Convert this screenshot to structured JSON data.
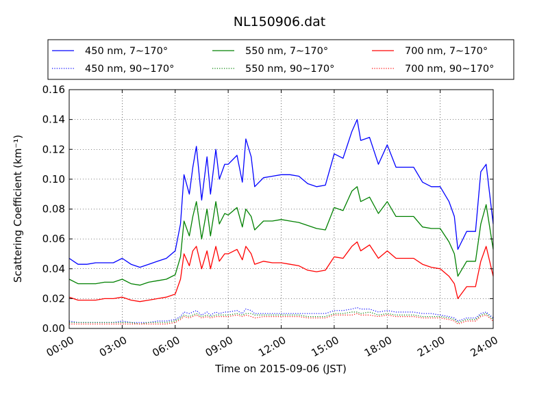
{
  "chart_data": {
    "type": "line",
    "title": "NL150906.dat",
    "xlabel": "Time on 2015-09-06 (JST)",
    "ylabel": "Scattering Coefficient (km⁻¹)",
    "xlim": [
      0,
      24
    ],
    "ylim": [
      0,
      0.16
    ],
    "x_ticks": [
      0,
      3,
      6,
      9,
      12,
      15,
      18,
      21,
      24
    ],
    "x_tick_labels": [
      "00:00",
      "03:00",
      "06:00",
      "09:00",
      "12:00",
      "15:00",
      "18:00",
      "21:00",
      "24:00"
    ],
    "y_ticks": [
      0,
      0.02,
      0.04,
      0.06,
      0.08,
      0.1,
      0.12,
      0.14,
      0.16
    ],
    "y_tick_labels": [
      "0.00",
      "0.02",
      "0.04",
      "0.06",
      "0.08",
      "0.10",
      "0.12",
      "0.14",
      "0.16"
    ],
    "grid": true,
    "legend_position": "top",
    "x_hours": [
      0,
      0.5,
      1,
      1.5,
      2,
      2.5,
      3,
      3.5,
      4,
      4.5,
      5,
      5.5,
      6,
      6.3,
      6.5,
      6.8,
      7,
      7.2,
      7.5,
      7.8,
      8,
      8.3,
      8.5,
      8.8,
      9,
      9.5,
      9.8,
      10,
      10.3,
      10.5,
      11,
      11.5,
      12,
      12.5,
      13,
      13.5,
      14,
      14.5,
      15,
      15.5,
      16,
      16.3,
      16.5,
      17,
      17.5,
      18,
      18.5,
      19,
      19.5,
      20,
      20.5,
      21,
      21.5,
      21.8,
      22,
      22.5,
      23,
      23.3,
      23.6,
      24
    ],
    "series": [
      {
        "name": "450 nm, 7∼170°",
        "color": "#0000ff",
        "style": "solid",
        "values": [
          0.047,
          0.043,
          0.043,
          0.044,
          0.044,
          0.044,
          0.047,
          0.043,
          0.041,
          0.043,
          0.045,
          0.047,
          0.052,
          0.07,
          0.103,
          0.09,
          0.108,
          0.122,
          0.086,
          0.115,
          0.09,
          0.12,
          0.1,
          0.11,
          0.11,
          0.116,
          0.098,
          0.127,
          0.115,
          0.095,
          0.101,
          0.102,
          0.103,
          0.103,
          0.102,
          0.097,
          0.095,
          0.096,
          0.117,
          0.114,
          0.132,
          0.14,
          0.126,
          0.128,
          0.11,
          0.123,
          0.108,
          0.108,
          0.108,
          0.098,
          0.095,
          0.095,
          0.085,
          0.075,
          0.053,
          0.065,
          0.065,
          0.105,
          0.11,
          0.07
        ]
      },
      {
        "name": "550 nm, 7∼170°",
        "color": "#008000",
        "style": "solid",
        "values": [
          0.033,
          0.03,
          0.03,
          0.03,
          0.031,
          0.031,
          0.033,
          0.03,
          0.029,
          0.031,
          0.032,
          0.033,
          0.036,
          0.048,
          0.072,
          0.062,
          0.075,
          0.085,
          0.06,
          0.08,
          0.062,
          0.085,
          0.07,
          0.077,
          0.076,
          0.081,
          0.068,
          0.08,
          0.075,
          0.066,
          0.072,
          0.072,
          0.073,
          0.072,
          0.071,
          0.069,
          0.067,
          0.066,
          0.081,
          0.079,
          0.092,
          0.095,
          0.085,
          0.088,
          0.077,
          0.085,
          0.075,
          0.075,
          0.075,
          0.068,
          0.067,
          0.067,
          0.058,
          0.05,
          0.035,
          0.045,
          0.045,
          0.07,
          0.083,
          0.053
        ]
      },
      {
        "name": "700 nm, 7∼170°",
        "color": "#ff0000",
        "style": "solid",
        "values": [
          0.021,
          0.019,
          0.019,
          0.019,
          0.02,
          0.02,
          0.021,
          0.019,
          0.018,
          0.019,
          0.02,
          0.021,
          0.023,
          0.033,
          0.05,
          0.042,
          0.052,
          0.055,
          0.04,
          0.052,
          0.04,
          0.055,
          0.045,
          0.05,
          0.05,
          0.053,
          0.046,
          0.055,
          0.05,
          0.043,
          0.045,
          0.044,
          0.044,
          0.043,
          0.042,
          0.039,
          0.038,
          0.039,
          0.048,
          0.047,
          0.055,
          0.058,
          0.052,
          0.056,
          0.047,
          0.052,
          0.047,
          0.047,
          0.047,
          0.043,
          0.041,
          0.04,
          0.035,
          0.03,
          0.02,
          0.028,
          0.028,
          0.045,
          0.055,
          0.035
        ]
      },
      {
        "name": "450 nm, 90∼170°",
        "color": "#0000ff",
        "style": "dotted",
        "values": [
          0.005,
          0.004,
          0.004,
          0.004,
          0.004,
          0.004,
          0.005,
          0.004,
          0.004,
          0.004,
          0.005,
          0.005,
          0.006,
          0.008,
          0.011,
          0.01,
          0.011,
          0.012,
          0.009,
          0.011,
          0.009,
          0.011,
          0.01,
          0.011,
          0.011,
          0.012,
          0.01,
          0.013,
          0.012,
          0.01,
          0.01,
          0.01,
          0.01,
          0.01,
          0.01,
          0.01,
          0.01,
          0.01,
          0.012,
          0.012,
          0.013,
          0.014,
          0.013,
          0.013,
          0.011,
          0.012,
          0.011,
          0.011,
          0.011,
          0.01,
          0.01,
          0.009,
          0.008,
          0.007,
          0.005,
          0.007,
          0.007,
          0.01,
          0.011,
          0.007
        ]
      },
      {
        "name": "550 nm, 90∼170°",
        "color": "#008000",
        "style": "dotted",
        "values": [
          0.004,
          0.004,
          0.004,
          0.004,
          0.004,
          0.004,
          0.004,
          0.004,
          0.003,
          0.004,
          0.004,
          0.004,
          0.005,
          0.007,
          0.009,
          0.008,
          0.009,
          0.01,
          0.008,
          0.009,
          0.008,
          0.009,
          0.009,
          0.009,
          0.009,
          0.01,
          0.009,
          0.01,
          0.01,
          0.009,
          0.009,
          0.009,
          0.009,
          0.009,
          0.009,
          0.008,
          0.008,
          0.008,
          0.01,
          0.01,
          0.011,
          0.011,
          0.01,
          0.011,
          0.009,
          0.01,
          0.009,
          0.009,
          0.009,
          0.008,
          0.008,
          0.008,
          0.007,
          0.006,
          0.004,
          0.006,
          0.006,
          0.009,
          0.01,
          0.006
        ]
      },
      {
        "name": "700 nm, 90∼170°",
        "color": "#ff0000",
        "style": "dotted",
        "values": [
          0.003,
          0.003,
          0.003,
          0.003,
          0.003,
          0.003,
          0.003,
          0.003,
          0.003,
          0.003,
          0.003,
          0.003,
          0.004,
          0.006,
          0.008,
          0.007,
          0.008,
          0.009,
          0.007,
          0.008,
          0.007,
          0.008,
          0.008,
          0.008,
          0.008,
          0.009,
          0.008,
          0.009,
          0.008,
          0.007,
          0.008,
          0.008,
          0.008,
          0.008,
          0.008,
          0.007,
          0.007,
          0.007,
          0.009,
          0.009,
          0.009,
          0.01,
          0.009,
          0.009,
          0.008,
          0.009,
          0.008,
          0.008,
          0.008,
          0.007,
          0.007,
          0.007,
          0.006,
          0.005,
          0.003,
          0.005,
          0.005,
          0.008,
          0.009,
          0.005
        ]
      }
    ]
  }
}
